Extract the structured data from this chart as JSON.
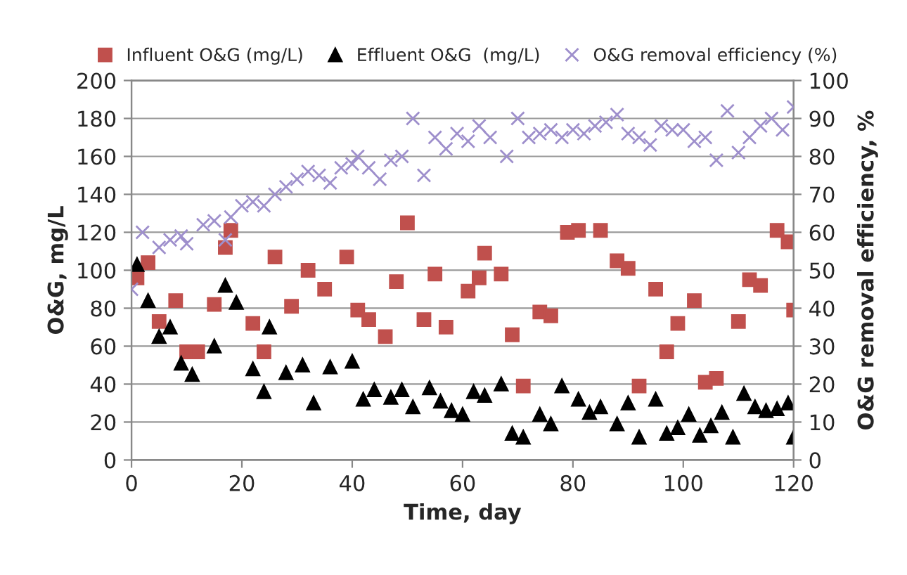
{
  "chart_data": {
    "type": "scatter",
    "xlabel": "Time, day",
    "ylabel": "O&G, mg/L",
    "y2label": "O&G removal efficiency, %",
    "xlim": [
      0,
      120
    ],
    "xticks": [
      0,
      20,
      40,
      60,
      80,
      100,
      120
    ],
    "ylim": [
      0,
      200
    ],
    "yticks": [
      0,
      20,
      40,
      60,
      80,
      100,
      120,
      140,
      160,
      180,
      200
    ],
    "y2lim": [
      0,
      100
    ],
    "y2ticks": [
      0,
      10,
      20,
      30,
      40,
      50,
      60,
      70,
      80,
      90,
      100
    ],
    "grid": "y",
    "legend": "top",
    "series": [
      {
        "name": "Influent O&G (mg/L)",
        "color": "#c0504d",
        "marker": "square",
        "x": [
          1,
          3,
          5,
          8,
          10,
          12,
          15,
          17,
          18,
          22,
          24,
          26,
          29,
          32,
          35,
          39,
          41,
          43,
          46,
          48,
          50,
          53,
          55,
          57,
          61,
          63,
          64,
          67,
          69,
          71,
          74,
          76,
          79,
          81,
          85,
          88,
          90,
          92,
          95,
          97,
          99,
          102,
          104,
          106,
          110,
          112,
          114,
          117,
          119,
          120
        ],
        "values": [
          96,
          104,
          73,
          84,
          57,
          57,
          82,
          112,
          121,
          72,
          57,
          107,
          81,
          100,
          90,
          107,
          79,
          74,
          65,
          94,
          125,
          74,
          98,
          70,
          89,
          96,
          109,
          98,
          66,
          39,
          78,
          76,
          120,
          121,
          121,
          105,
          101,
          39,
          90,
          57,
          72,
          84,
          41,
          43,
          73,
          95,
          92,
          121,
          115,
          79
        ]
      },
      {
        "name": "Effluent O&G  (mg/L)",
        "color": "#000000",
        "marker": "triangle",
        "x": [
          1,
          3,
          5,
          7,
          9,
          11,
          15,
          17,
          19,
          22,
          24,
          25,
          28,
          31,
          33,
          36,
          40,
          42,
          44,
          47,
          49,
          51,
          54,
          56,
          58,
          60,
          62,
          64,
          67,
          69,
          71,
          74,
          76,
          78,
          81,
          83,
          85,
          88,
          90,
          92,
          95,
          97,
          99,
          101,
          103,
          105,
          107,
          109,
          111,
          113,
          115,
          117,
          119,
          120
        ],
        "values": [
          103,
          84,
          65,
          70,
          51,
          45,
          60,
          92,
          83,
          48,
          36,
          70,
          46,
          50,
          30,
          49,
          52,
          32,
          37,
          33,
          37,
          28,
          38,
          31,
          26,
          24,
          36,
          34,
          40,
          14,
          12,
          24,
          19,
          39,
          32,
          25,
          28,
          19,
          30,
          12,
          32,
          14,
          17,
          24,
          13,
          18,
          25,
          12,
          35,
          28,
          26,
          27,
          30,
          12
        ]
      },
      {
        "name": "O&G removal efficiency (%)",
        "color": "#9e8fcc",
        "marker": "cross",
        "axis": "y2",
        "x": [
          0,
          2,
          5,
          7,
          9,
          10,
          13,
          15,
          17,
          18,
          20,
          22,
          24,
          26,
          28,
          30,
          32,
          34,
          36,
          38,
          40,
          41,
          43,
          45,
          47,
          49,
          51,
          53,
          55,
          57,
          59,
          61,
          63,
          65,
          68,
          70,
          72,
          74,
          76,
          78,
          80,
          82,
          84,
          86,
          88,
          90,
          92,
          94,
          96,
          98,
          100,
          102,
          104,
          106,
          108,
          110,
          112,
          114,
          116,
          118,
          120
        ],
        "values": [
          45,
          60,
          56,
          58,
          59,
          57,
          62,
          63,
          58,
          64,
          67,
          68,
          67,
          70,
          72,
          74,
          76,
          75,
          73,
          77,
          78,
          80,
          77,
          74,
          79,
          80,
          90,
          75,
          85,
          82,
          86,
          84,
          88,
          85,
          80,
          90,
          85,
          86,
          87,
          85,
          87,
          86,
          88,
          89,
          91,
          86,
          85,
          83,
          88,
          87,
          87,
          84,
          85,
          79,
          92,
          81,
          85,
          88,
          90,
          87,
          93
        ]
      }
    ]
  }
}
